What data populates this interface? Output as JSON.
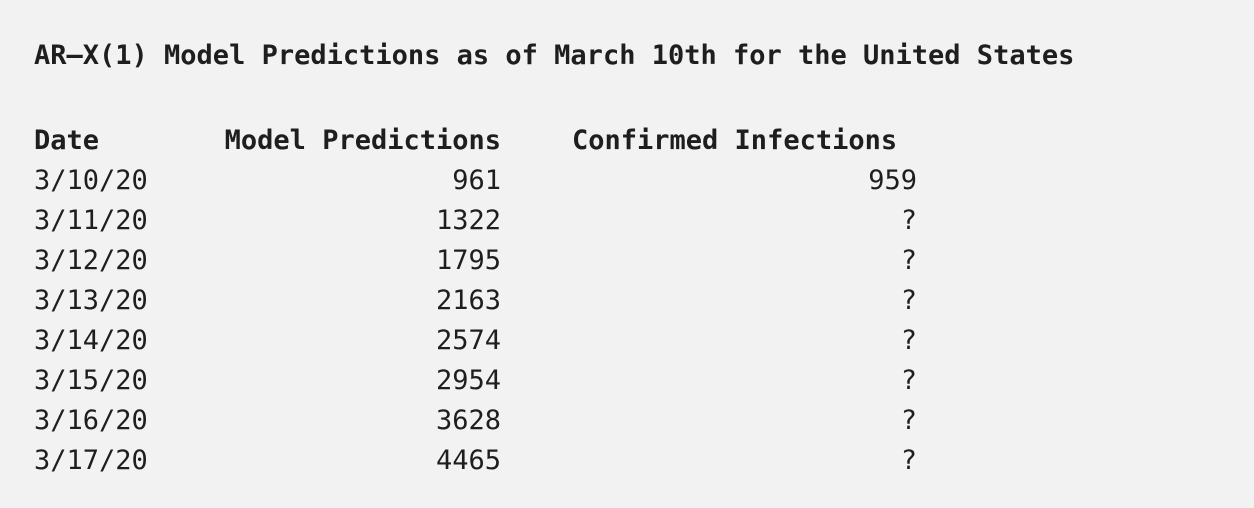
{
  "document": {
    "title": "AR–X(1) Model Predictions as of March 10th for the United States"
  },
  "table": {
    "headers": {
      "date": "Date",
      "predictions": "Model Predictions",
      "confirmed": "Confirmed Infections"
    },
    "rows": [
      {
        "date": "3/10/20",
        "predictions": "961",
        "confirmed": "959"
      },
      {
        "date": "3/11/20",
        "predictions": "1322",
        "confirmed": "?"
      },
      {
        "date": "3/12/20",
        "predictions": "1795",
        "confirmed": "?"
      },
      {
        "date": "3/13/20",
        "predictions": "2163",
        "confirmed": "?"
      },
      {
        "date": "3/14/20",
        "predictions": "2574",
        "confirmed": "?"
      },
      {
        "date": "3/15/20",
        "predictions": "2954",
        "confirmed": "?"
      },
      {
        "date": "3/16/20",
        "predictions": "3628",
        "confirmed": "?"
      },
      {
        "date": "3/17/20",
        "predictions": "4465",
        "confirmed": "?"
      }
    ]
  }
}
